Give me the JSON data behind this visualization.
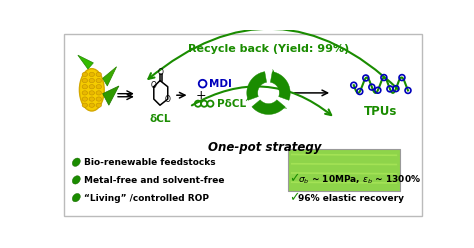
{
  "bg_color": "#ffffff",
  "green_dark": "#1a8c00",
  "green_light": "#7dc85a",
  "blue_dot": "#0000bb",
  "title_recycle": "Recycle back (Yield: 99%)",
  "label_strategy": "One-pot strategy",
  "label_dcl": "δCL",
  "label_mdi": "MDI",
  "label_pdcl": "PδCL",
  "label_tpus": "TPUs",
  "bullet1": "Bio-renewable feedstocks",
  "bullet2": "Metal-free and solvent-free",
  "bullet3": "“Living” /controlled ROP",
  "check1_a": "σ",
  "check1_b": "b",
  "check1_c": " ~ 10MPa, ε",
  "check1_d": "b",
  "check1_e": " ~ 1300%",
  "check2": "96% elastic recovery",
  "green_box_color": "#8ed44a",
  "border_color": "#bbbbbb"
}
